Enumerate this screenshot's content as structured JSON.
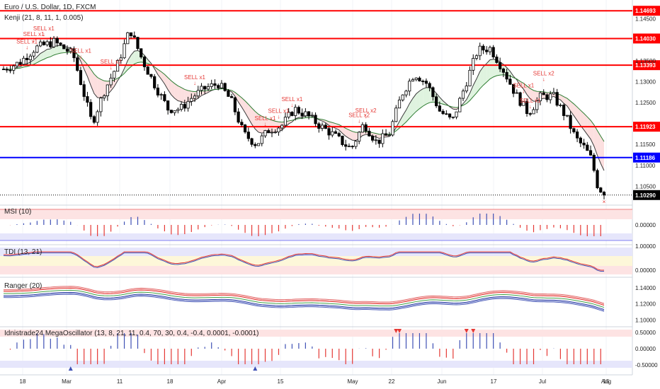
{
  "chart_data": {
    "type": "candlestick",
    "title": "Euro / U.S. Dollar, 1D, FXCM",
    "indicator_label": "Kenji (21, 8, 11, 1, 0.005)",
    "price_axis_ticks": [
      "1.14500",
      "1.13500",
      "1.13000",
      "1.12500",
      "1.11500",
      "1.11000",
      "1.10500"
    ],
    "price_axis_range": [
      1.1005,
      1.1495
    ],
    "horizontal_levels": [
      {
        "label": "1.14693",
        "value": 1.14693,
        "color": "#ff0000"
      },
      {
        "label": "1.14030",
        "value": 1.1403,
        "color": "#ff0000"
      },
      {
        "label": "1.13393",
        "value": 1.13393,
        "color": "#ff0000"
      },
      {
        "label": "1.11923",
        "value": 1.11923,
        "color": "#ff0000"
      },
      {
        "label": "1.11186",
        "value": 1.11186,
        "color": "#0000ff"
      }
    ],
    "last_price_label": "1.10290",
    "last_price": 1.1029,
    "time_axis_labels": [
      "18",
      "Mar",
      "11",
      "18",
      "Apr",
      "15",
      "May",
      "22",
      "Jun",
      "17",
      "Jul",
      "15",
      "Aug"
    ],
    "sell_signals": [
      {
        "label": "SELL x1",
        "bar": 7
      },
      {
        "label": "SELL x1",
        "bar": 10
      },
      {
        "label": "SELL x1",
        "bar": 13
      },
      {
        "label": "SELL x1",
        "bar": 24
      },
      {
        "label": "SELL x2",
        "bar": 34
      },
      {
        "label": "SELL x1",
        "bar": 61
      },
      {
        "label": "SELL x1",
        "bar": 83
      },
      {
        "label": "SELL x1",
        "bar": 87
      },
      {
        "label": "SELL x1",
        "bar": 91
      },
      {
        "label": "SELL x2",
        "bar": 112
      },
      {
        "label": "SELL x2",
        "bar": 115
      },
      {
        "label": "SELL x1",
        "bar": 164
      },
      {
        "label": "SELL x1",
        "bar": 167
      },
      {
        "label": "SELL x2",
        "bar": 171
      }
    ],
    "panels": [
      {
        "name": "MSI (10)",
        "ticks": [
          "0.00000"
        ]
      },
      {
        "name": "TDI (13, 21)",
        "ticks": [
          "1.00000",
          "0.00000"
        ]
      },
      {
        "name": "Ranger (20)",
        "ticks": [
          "1.14000",
          "1.12000",
          "1.10000"
        ]
      },
      {
        "name": "Idnistrade24 MegaOscillator (13, 8, 21, 11, 0.4, 70, 30, 0.4, -0.4, 0.0001, -0.0001)",
        "ticks": [
          "0.50000",
          "0.00000",
          "-0.50000"
        ]
      }
    ]
  },
  "colors": {
    "bull": "#ffffff",
    "bear": "#000000",
    "level_red": "#ff0000",
    "level_blue": "#0000ff",
    "sell": "#e53935"
  }
}
